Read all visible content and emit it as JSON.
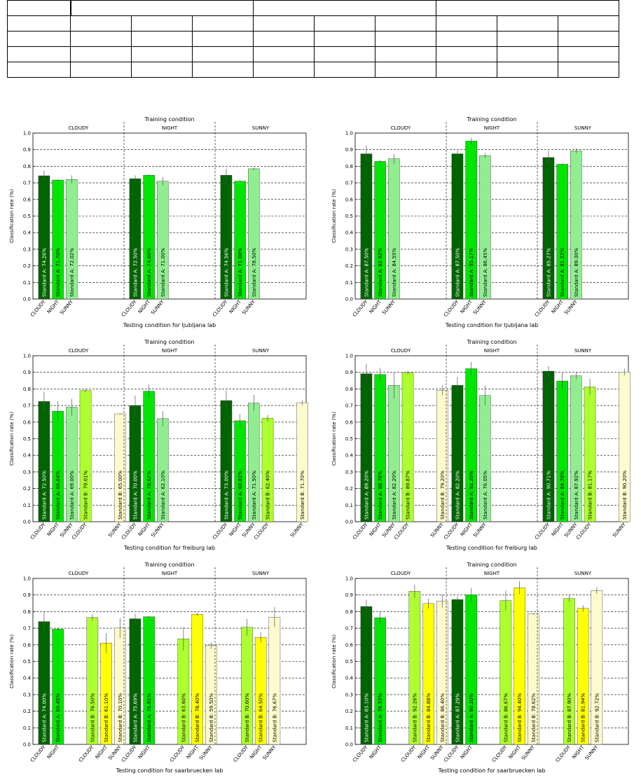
{
  "top_table": {
    "rows": 5,
    "first_row_header_spans": [
      1,
      3,
      3,
      3
    ],
    "columns": 10
  },
  "colors": {
    "standard_a_cloudy": "#006400",
    "standard_a_night": "#00e600",
    "standard_a_sunny": "#90ee90",
    "standard_b_cloudy": "#adff2f",
    "standard_b_night": "#ffff00",
    "standard_b_sunny": "#fffacd"
  },
  "chart_data": [
    {
      "type": "bar",
      "title": "Training condition",
      "xlabel": "Testing condition for ljubljana lab",
      "ylabel": "Classification rate (%)",
      "ylim": [
        0,
        1.0
      ],
      "yticks": [
        "0.0",
        "0.1",
        "0.2",
        "0.3",
        "0.4",
        "0.5",
        "0.6",
        "0.7",
        "0.8",
        "0.9",
        "1.0"
      ],
      "groups": [
        {
          "label": "CLOUDY",
          "bars": [
            {
              "value": 0.7426,
              "err": 0.03,
              "color": "standard_a_cloudy",
              "label": "Standard A: 74.26%",
              "tick": "CLOUDY"
            },
            {
              "value": 0.717,
              "err": 0.005,
              "color": "standard_a_night",
              "label": "Standard A: 71.70%",
              "tick": "NIGHT"
            },
            {
              "value": 0.7202,
              "err": 0.025,
              "color": "standard_a_sunny",
              "label": "Standard A: 72.02%",
              "tick": "SUNNY"
            }
          ]
        },
        {
          "label": "NIGHT",
          "bars": [
            {
              "value": 0.725,
              "err": 0.02,
              "color": "standard_a_cloudy",
              "label": "Standard A: 72.50%",
              "tick": "CLOUDY"
            },
            {
              "value": 0.746,
              "err": 0.005,
              "color": "standard_a_night",
              "label": "Standard A: 74.60%",
              "tick": "NIGHT"
            },
            {
              "value": 0.71,
              "err": 0.025,
              "color": "standard_a_sunny",
              "label": "Standard A: 71.00%",
              "tick": "SUNNY"
            }
          ]
        },
        {
          "label": "SUNNY",
          "bars": [
            {
              "value": 0.7456,
              "err": 0.04,
              "color": "standard_a_cloudy",
              "label": "Standard A: 74.56%",
              "tick": "CLOUDY"
            },
            {
              "value": 0.71,
              "err": 0.005,
              "color": "standard_a_night",
              "label": "Standard A: 71.00%",
              "tick": "NIGHT"
            },
            {
              "value": 0.785,
              "err": 0.01,
              "color": "standard_a_sunny",
              "label": "Standard A: 78.50%",
              "tick": "SUNNY"
            }
          ]
        }
      ]
    },
    {
      "type": "bar",
      "title": "Training condition",
      "xlabel": "Testing condition for ljubljana lab",
      "ylabel": "Classification rate (%)",
      "ylim": [
        0,
        1.0
      ],
      "yticks": [
        "0.0",
        "0.1",
        "0.2",
        "0.3",
        "0.4",
        "0.5",
        "0.6",
        "0.7",
        "0.8",
        "0.9",
        "1.0"
      ],
      "groups": [
        {
          "label": "CLOUDY",
          "bars": [
            {
              "value": 0.875,
              "err": 0.05,
              "color": "standard_a_cloudy",
              "label": "Standard A: 87.50%",
              "tick": "CLOUDY"
            },
            {
              "value": 0.8292,
              "err": 0.01,
              "color": "standard_a_night",
              "label": "Standard A: 82.92%",
              "tick": "NIGHT"
            },
            {
              "value": 0.8455,
              "err": 0.03,
              "color": "standard_a_sunny",
              "label": "Standard A: 84.55%",
              "tick": "SUNNY"
            }
          ]
        },
        {
          "label": "NIGHT",
          "bars": [
            {
              "value": 0.875,
              "err": 0.02,
              "color": "standard_a_cloudy",
              "label": "Standard A: 87.50%",
              "tick": "CLOUDY"
            },
            {
              "value": 0.9517,
              "err": 0.02,
              "color": "standard_a_night",
              "label": "Standard A: 95.17%",
              "tick": "NIGHT"
            },
            {
              "value": 0.8645,
              "err": 0.015,
              "color": "standard_a_sunny",
              "label": "Standard A: 86.45%",
              "tick": "SUNNY"
            }
          ]
        },
        {
          "label": "SUNNY",
          "bars": [
            {
              "value": 0.8527,
              "err": 0.04,
              "color": "standard_a_cloudy",
              "label": "Standard A: 85.27%",
              "tick": "CLOUDY"
            },
            {
              "value": 0.8122,
              "err": 0.005,
              "color": "standard_a_night",
              "label": "Standard A: 81.22%",
              "tick": "NIGHT"
            },
            {
              "value": 0.893,
              "err": 0.015,
              "color": "standard_a_sunny",
              "label": "Standard A: 89.30%",
              "tick": "SUNNY"
            }
          ]
        }
      ]
    },
    {
      "type": "bar",
      "title": "Training condition",
      "xlabel": "Testing condition for freiburg lab",
      "ylabel": "Classification rate (%)",
      "ylim": [
        0,
        1.0
      ],
      "yticks": [
        "0.0",
        "0.1",
        "0.2",
        "0.3",
        "0.4",
        "0.5",
        "0.6",
        "0.7",
        "0.8",
        "0.9",
        "1.0"
      ],
      "groups": [
        {
          "label": "CLOUDY",
          "bars": [
            {
              "value": 0.725,
              "err": 0.06,
              "color": "standard_a_cloudy",
              "label": "Standard A: 72.50%",
              "tick": "CLOUDY"
            },
            {
              "value": 0.6664,
              "err": 0.06,
              "color": "standard_a_night",
              "label": "Standard A: 66.64%",
              "tick": "NIGHT"
            },
            {
              "value": 0.69,
              "err": 0.05,
              "color": "standard_a_sunny",
              "label": "Standard A: 69.00%",
              "tick": "SUNNY"
            },
            {
              "value": 0.7901,
              "err": 0.01,
              "color": "standard_b_cloudy",
              "label": "Standard B: 79.01%",
              "tick": "CLOUDY"
            },
            {
              "value": 0.65,
              "err": 0.005,
              "color": "standard_b_sunny",
              "label": "Standard B: 65.00%",
              "tick": "SUNNY",
              "gap_before": true
            }
          ]
        },
        {
          "label": "NIGHT",
          "bars": [
            {
              "value": 0.7,
              "err": 0.06,
              "color": "standard_a_cloudy",
              "label": "Standard A: 70.00%",
              "tick": "CLOUDY"
            },
            {
              "value": 0.7867,
              "err": 0.04,
              "color": "standard_a_night",
              "label": "Standard A: 78.67%",
              "tick": "NIGHT"
            },
            {
              "value": 0.621,
              "err": 0.045,
              "color": "standard_a_sunny",
              "label": "Standard A: 62.10%",
              "tick": "SUNNY"
            }
          ]
        },
        {
          "label": "SUNNY",
          "bars": [
            {
              "value": 0.73,
              "err": 0.06,
              "color": "standard_a_cloudy",
              "label": "Standard A: 73.00%",
              "tick": "CLOUDY"
            },
            {
              "value": 0.6081,
              "err": 0.04,
              "color": "standard_a_night",
              "label": "Standard A: 60.81%",
              "tick": "NIGHT"
            },
            {
              "value": 0.715,
              "err": 0.05,
              "color": "standard_a_sunny",
              "label": "Standard A: 71.50%",
              "tick": "SUNNY"
            },
            {
              "value": 0.624,
              "err": 0.02,
              "color": "standard_b_cloudy",
              "label": "Standard B: 62.40%",
              "tick": "CLOUDY"
            },
            {
              "value": 0.717,
              "err": 0.015,
              "color": "standard_b_sunny",
              "label": "Standard B: 71.70%",
              "tick": "SUNNY",
              "gap_before": true
            }
          ]
        }
      ]
    },
    {
      "type": "bar",
      "title": "Training condition",
      "xlabel": "Testing condition for freiburg lab",
      "ylabel": "Classification rate (%)",
      "ylim": [
        0,
        1.0
      ],
      "yticks": [
        "0.0",
        "0.1",
        "0.2",
        "0.3",
        "0.4",
        "0.5",
        "0.6",
        "0.7",
        "0.8",
        "0.9",
        "1.0"
      ],
      "groups": [
        {
          "label": "CLOUDY",
          "bars": [
            {
              "value": 0.892,
              "err": 0.06,
              "color": "standard_a_cloudy",
              "label": "Standard A: 89.20%",
              "tick": "CLOUDY"
            },
            {
              "value": 0.8876,
              "err": 0.04,
              "color": "standard_a_night",
              "label": "Standard A: 88.76%",
              "tick": "NIGHT"
            },
            {
              "value": 0.822,
              "err": 0.08,
              "color": "standard_a_sunny",
              "label": "Standard A: 82.20%",
              "tick": "SUNNY"
            },
            {
              "value": 0.8987,
              "err": 0.01,
              "color": "standard_b_cloudy",
              "label": "Standard B: 89.87%",
              "tick": "CLOUDY"
            },
            {
              "value": 0.792,
              "err": 0.03,
              "color": "standard_b_sunny",
              "label": "Standard B: 79.20%",
              "tick": "SUNNY",
              "gap_before": true
            }
          ]
        },
        {
          "label": "NIGHT",
          "bars": [
            {
              "value": 0.822,
              "err": 0.05,
              "color": "standard_a_cloudy",
              "label": "Standard A: 82.20%",
              "tick": "CLOUDY"
            },
            {
              "value": 0.922,
              "err": 0.04,
              "color": "standard_a_night",
              "label": "Standard A: 92.20%",
              "tick": "NIGHT"
            },
            {
              "value": 0.7605,
              "err": 0.06,
              "color": "standard_a_sunny",
              "label": "Standard A: 76.05%",
              "tick": "SUNNY"
            }
          ]
        },
        {
          "label": "SUNNY",
          "bars": [
            {
              "value": 0.9071,
              "err": 0.03,
              "color": "standard_a_cloudy",
              "label": "Standard A: 90.71%",
              "tick": "CLOUDY"
            },
            {
              "value": 0.8478,
              "err": 0.05,
              "color": "standard_a_night",
              "label": "Standard A: 84.78%",
              "tick": "NIGHT"
            },
            {
              "value": 0.8792,
              "err": 0.02,
              "color": "standard_a_sunny",
              "label": "Standard A: 87.92%",
              "tick": "SUNNY"
            },
            {
              "value": 0.8117,
              "err": 0.05,
              "color": "standard_b_cloudy",
              "label": "Standard B: 81.17%",
              "tick": "CLOUDY"
            },
            {
              "value": 0.902,
              "err": 0.02,
              "color": "standard_b_sunny",
              "label": "Standard B: 90.20%",
              "tick": "SUNNY",
              "gap_before": true
            }
          ]
        }
      ]
    },
    {
      "type": "bar",
      "title": "Training condition",
      "xlabel": "Testing condition for saarbruecken lab",
      "ylabel": "Classification rate (%)",
      "ylim": [
        0,
        1.0
      ],
      "yticks": [
        "0.0",
        "0.1",
        "0.2",
        "0.3",
        "0.4",
        "0.5",
        "0.6",
        "0.7",
        "0.8",
        "0.9",
        "1.0"
      ],
      "groups": [
        {
          "label": "CLOUDY",
          "bars": [
            {
              "value": 0.74,
              "err": 0.06,
              "color": "standard_a_cloudy",
              "label": "Standard A: 74.00%",
              "tick": "CLOUDY"
            },
            {
              "value": 0.6945,
              "err": 0.01,
              "color": "standard_a_night",
              "label": "Standard A: 69.45%",
              "tick": "NIGHT"
            },
            {
              "value": 0.765,
              "err": 0.02,
              "color": "standard_b_cloudy",
              "label": "Standard B: 76.50%",
              "tick": "CLOUDY",
              "gap_before": true
            },
            {
              "value": 0.611,
              "err": 0.06,
              "color": "standard_b_night",
              "label": "Standard B: 61.10%",
              "tick": "NIGHT"
            },
            {
              "value": 0.701,
              "err": 0.06,
              "color": "standard_b_sunny",
              "label": "Standard B: 70.10%",
              "tick": "SUNNY"
            }
          ]
        },
        {
          "label": "NIGHT",
          "bars": [
            {
              "value": 0.7569,
              "err": 0.03,
              "color": "standard_a_cloudy",
              "label": "Standard A: 75.69%",
              "tick": "CLOUDY"
            },
            {
              "value": 0.7691,
              "err": 0.005,
              "color": "standard_a_night",
              "label": "Standard A: 76.91%",
              "tick": "NIGHT"
            },
            {
              "value": 0.636,
              "err": 0.07,
              "color": "standard_b_cloudy",
              "label": "Standard B: 63.60%",
              "tick": "CLOUDY",
              "gap_before": true
            },
            {
              "value": 0.784,
              "err": 0.01,
              "color": "standard_b_night",
              "label": "Standard B: 78.40%",
              "tick": "NIGHT"
            },
            {
              "value": 0.595,
              "err": 0.02,
              "color": "standard_b_sunny",
              "label": "Standard B: 59.50%",
              "tick": "SUNNY"
            }
          ]
        },
        {
          "label": "SUNNY",
          "bars": [
            {
              "value": 0.706,
              "err": 0.05,
              "color": "standard_b_cloudy",
              "label": "Standard B: 70.60%",
              "tick": "CLOUDY",
              "gap_before": true
            },
            {
              "value": 0.645,
              "err": 0.03,
              "color": "standard_b_night",
              "label": "Standard B: 64.50%",
              "tick": "NIGHT"
            },
            {
              "value": 0.7667,
              "err": 0.06,
              "color": "standard_b_sunny",
              "label": "Standard B: 76.67%",
              "tick": "SUNNY"
            }
          ]
        }
      ]
    },
    {
      "type": "bar",
      "title": "Training condition",
      "xlabel": "Testing condition for saarbruecken lab",
      "ylabel": "Classification rate (%)",
      "ylim": [
        0,
        1.0
      ],
      "yticks": [
        "0.0",
        "0.1",
        "0.2",
        "0.3",
        "0.4",
        "0.5",
        "0.6",
        "0.7",
        "0.8",
        "0.9",
        "1.0"
      ],
      "groups": [
        {
          "label": "CLOUDY",
          "bars": [
            {
              "value": 0.831,
              "err": 0.04,
              "color": "standard_a_cloudy",
              "label": "Standard A: 83.10%",
              "tick": "CLOUDY"
            },
            {
              "value": 0.7633,
              "err": 0.04,
              "color": "standard_a_night",
              "label": "Standard A: 76.33%",
              "tick": "NIGHT"
            },
            {
              "value": 0.9226,
              "err": 0.04,
              "color": "standard_b_cloudy",
              "label": "Standard B: 92.26%",
              "tick": "CLOUDY",
              "gap_before": true
            },
            {
              "value": 0.8488,
              "err": 0.03,
              "color": "standard_b_night",
              "label": "Standard B: 84.88%",
              "tick": "NIGHT"
            },
            {
              "value": 0.864,
              "err": 0.04,
              "color": "standard_b_sunny",
              "label": "Standard B: 86.40%",
              "tick": "SUNNY"
            }
          ]
        },
        {
          "label": "NIGHT",
          "bars": [
            {
              "value": 0.8729,
              "err": 0.02,
              "color": "standard_a_cloudy",
              "label": "Standard A: 87.29%",
              "tick": "CLOUDY"
            },
            {
              "value": 0.902,
              "err": 0.04,
              "color": "standard_a_night",
              "label": "Standard A: 90.20%",
              "tick": "NIGHT"
            },
            {
              "value": 0.8667,
              "err": 0.06,
              "color": "standard_b_cloudy",
              "label": "Standard B: 86.67%",
              "tick": "CLOUDY",
              "gap_before": true
            },
            {
              "value": 0.944,
              "err": 0.04,
              "color": "standard_b_night",
              "label": "Standard B: 94.40%",
              "tick": "NIGHT"
            },
            {
              "value": 0.7862,
              "err": 0.005,
              "color": "standard_b_sunny",
              "label": "Standard B: 78.62%",
              "tick": "SUNNY"
            }
          ]
        },
        {
          "label": "SUNNY",
          "bars": [
            {
              "value": 0.879,
              "err": 0.02,
              "color": "standard_b_cloudy",
              "label": "Standard B: 87.90%",
              "tick": "CLOUDY",
              "gap_before": true
            },
            {
              "value": 0.8194,
              "err": 0.02,
              "color": "standard_b_night",
              "label": "Standard B: 81.94%",
              "tick": "NIGHT"
            },
            {
              "value": 0.9272,
              "err": 0.02,
              "color": "standard_b_sunny",
              "label": "Standard B: 92.72%",
              "tick": "SUNNY"
            }
          ]
        }
      ]
    }
  ]
}
